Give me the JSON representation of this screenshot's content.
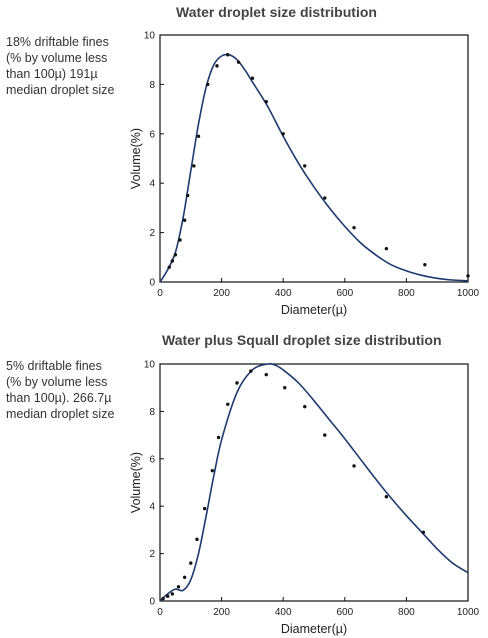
{
  "chart_data": [
    {
      "type": "line",
      "title": "Water droplet size distribution",
      "annotation": "18% driftable fines\n(% by volume less\nthan 100µ)  191µ\nmedian droplet size",
      "xlabel": "Diameter(µ)",
      "ylabel": "Volume(%)",
      "xlim": [
        0,
        1000
      ],
      "ylim": [
        0,
        10
      ],
      "x_ticks": [
        0,
        200,
        400,
        600,
        800,
        1000
      ],
      "y_ticks": [
        0,
        2,
        4,
        6,
        8,
        10
      ],
      "x_tick_labels": [
        "0",
        "200",
        "400",
        "600",
        "800",
        "1000"
      ],
      "y_tick_labels": [
        "0",
        "2",
        "4",
        "6",
        "8",
        "10"
      ],
      "series": [
        {
          "kind": "curve",
          "color": "#1e3a6e",
          "x": [
            0,
            25,
            50,
            75,
            100,
            125,
            150,
            175,
            200,
            225,
            250,
            275,
            300,
            350,
            400,
            450,
            500,
            550,
            600,
            650,
            700,
            750,
            800,
            850,
            900,
            950,
            1000
          ],
          "y": [
            0,
            0.5,
            1.2,
            2.6,
            4.5,
            6.4,
            7.9,
            8.8,
            9.15,
            9.2,
            9.0,
            8.6,
            8.1,
            7.1,
            5.9,
            4.8,
            3.85,
            3.0,
            2.25,
            1.6,
            1.1,
            0.7,
            0.45,
            0.27,
            0.15,
            0.08,
            0.05
          ]
        },
        {
          "kind": "points",
          "color": "#111111",
          "x": [
            30,
            40,
            50,
            65,
            80,
            90,
            110,
            125,
            155,
            185,
            220,
            255,
            300,
            345,
            400,
            470,
            535,
            630,
            735,
            860,
            1000
          ],
          "y": [
            0.6,
            0.85,
            1.1,
            1.7,
            2.5,
            3.5,
            4.7,
            5.9,
            8.0,
            8.75,
            9.2,
            8.9,
            8.25,
            7.3,
            6.0,
            4.7,
            3.4,
            2.2,
            1.35,
            0.7,
            0.25
          ]
        }
      ],
      "grid": false
    },
    {
      "type": "line",
      "title": "Water plus Squall droplet size distribution",
      "annotation": "5% driftable fines\n(% by volume less\nthan 100µ). 266.7µ\nmedian droplet size",
      "xlabel": "Diameter(µ)",
      "ylabel": "Volume(%)",
      "xlim": [
        0,
        1000
      ],
      "ylim": [
        0,
        10
      ],
      "x_ticks": [
        0,
        200,
        400,
        600,
        800,
        1000
      ],
      "y_ticks": [
        0,
        2,
        4,
        6,
        8,
        10
      ],
      "x_tick_labels": [
        "0",
        "200",
        "400",
        "600",
        "800",
        "1000"
      ],
      "y_tick_labels": [
        "0",
        "2",
        "4",
        "6",
        "8",
        "10"
      ],
      "series": [
        {
          "kind": "curve",
          "color": "#1e3a6e",
          "x": [
            0,
            25,
            50,
            75,
            100,
            125,
            150,
            175,
            200,
            250,
            300,
            350,
            375,
            400,
            450,
            500,
            550,
            600,
            650,
            700,
            750,
            800,
            850,
            900,
            950,
            1000
          ],
          "y": [
            0,
            0.3,
            0.5,
            0.45,
            0.9,
            2.0,
            3.6,
            5.3,
            6.8,
            8.8,
            9.75,
            10.0,
            9.95,
            9.75,
            9.2,
            8.45,
            7.65,
            6.85,
            6.0,
            5.15,
            4.35,
            3.6,
            2.9,
            2.2,
            1.6,
            1.2
          ]
        },
        {
          "kind": "points",
          "color": "#111111",
          "x": [
            10,
            25,
            40,
            60,
            80,
            100,
            120,
            145,
            170,
            190,
            220,
            250,
            295,
            345,
            405,
            470,
            535,
            630,
            735,
            855
          ],
          "y": [
            0.1,
            0.2,
            0.3,
            0.6,
            1.0,
            1.6,
            2.6,
            3.9,
            5.5,
            6.9,
            8.3,
            9.2,
            9.7,
            9.55,
            9.0,
            8.2,
            7.0,
            5.7,
            4.4,
            2.9
          ]
        }
      ],
      "grid": false
    }
  ]
}
